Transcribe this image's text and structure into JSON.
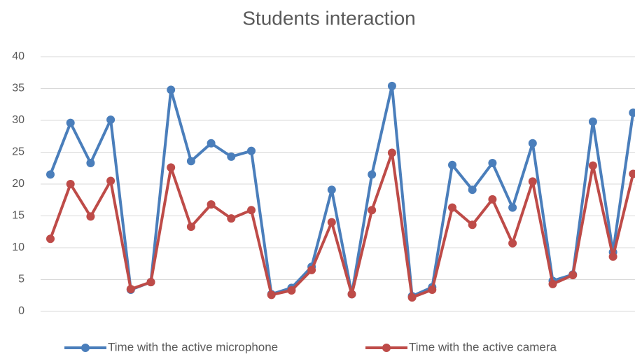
{
  "chart_data": {
    "type": "line",
    "title": "Students interaction",
    "categories": [
      null,
      null,
      null,
      null,
      null,
      null,
      null,
      null,
      null,
      null,
      null,
      null,
      null,
      null,
      null,
      null,
      null,
      null,
      null,
      null,
      null,
      null,
      null,
      null,
      null,
      null,
      null,
      null,
      null,
      null
    ],
    "series": [
      {
        "name": "Time with the active microphone",
        "color": "#4a7ebb",
        "values": [
          21.5,
          29.6,
          23.3,
          30.1,
          3.4,
          4.6,
          34.8,
          23.6,
          26.4,
          24.3,
          25.2,
          2.7,
          3.7,
          7.0,
          19.1,
          2.7,
          21.5,
          35.4,
          2.4,
          3.8,
          23.0,
          19.1,
          23.3,
          16.3,
          26.4,
          4.8,
          5.8,
          29.8,
          9.3,
          31.2
        ]
      },
      {
        "name": "Time with the active camera",
        "color": "#be4b48",
        "values": [
          11.4,
          20.0,
          14.9,
          20.5,
          3.5,
          4.6,
          22.6,
          13.3,
          16.8,
          14.6,
          15.9,
          2.6,
          3.3,
          6.5,
          14.0,
          2.7,
          15.9,
          24.9,
          2.2,
          3.4,
          16.3,
          13.6,
          17.6,
          10.7,
          20.4,
          4.3,
          5.7,
          22.9,
          8.6,
          21.6
        ]
      }
    ],
    "ylim": [
      0,
      40
    ],
    "yticks": [
      0,
      5,
      10,
      15,
      20,
      25,
      30,
      35,
      40
    ],
    "grid": true,
    "legend": "bottom"
  }
}
